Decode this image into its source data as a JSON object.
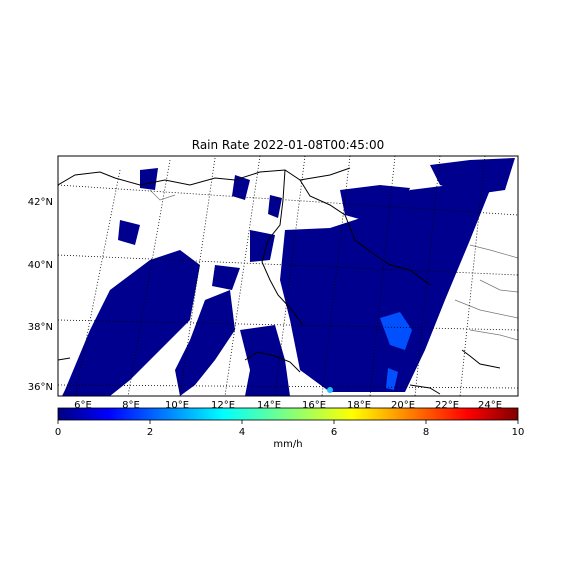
{
  "title": "Rain Rate 2022-01-08T00:45:00",
  "lat_labels": [
    "42°N",
    "40°N",
    "38°N",
    "36°N"
  ],
  "lon_labels": [
    "6°E",
    "8°E",
    "10°E",
    "12°E",
    "14°E",
    "16°E",
    "18°E",
    "20°E",
    "22°E",
    "24°E"
  ],
  "colorbar": {
    "ticks": [
      "0",
      "2",
      "4",
      "6",
      "8",
      "10"
    ],
    "unit": "mm/h",
    "min": 0,
    "max": 10,
    "colormap": "jet"
  },
  "colors": {
    "rain_low": "#00008f",
    "rain_mid": "#0050ff",
    "coast": "#000000",
    "border": "#555555"
  }
}
